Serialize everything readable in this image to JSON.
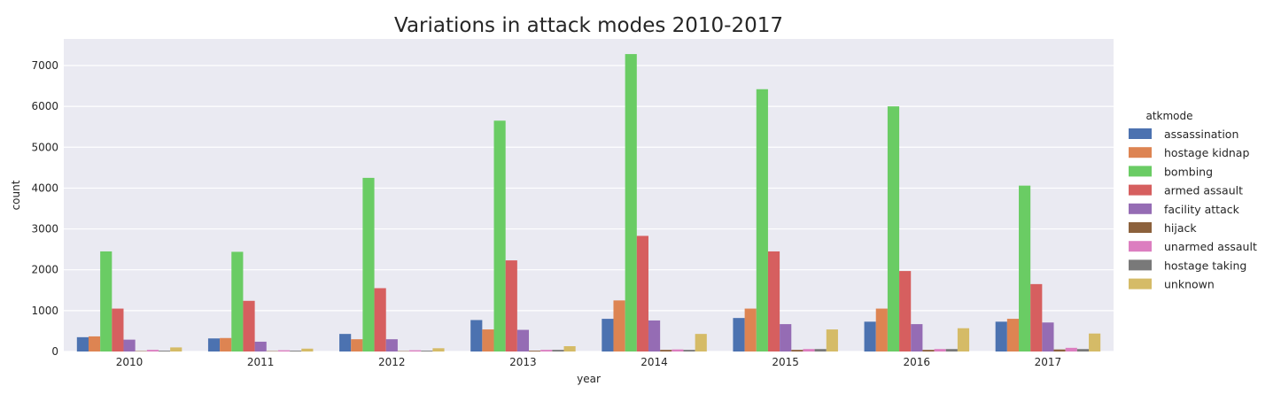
{
  "chart_data": {
    "type": "bar",
    "title": "Variations in attack modes 2010-2017",
    "xlabel": "year",
    "ylabel": "count",
    "ylim": [
      0,
      7650
    ],
    "yticks": [
      0,
      1000,
      2000,
      3000,
      4000,
      5000,
      6000,
      7000
    ],
    "grid": true,
    "legend_title": "atkmode",
    "legend_position": "right",
    "categories": [
      "2010",
      "2011",
      "2012",
      "2013",
      "2014",
      "2015",
      "2016",
      "2017"
    ],
    "series": [
      {
        "name": "assassination",
        "color": "#4c72b0",
        "values": [
          350,
          320,
          430,
          770,
          800,
          820,
          730,
          730
        ]
      },
      {
        "name": "hostage kidnap",
        "color": "#dd8452",
        "values": [
          370,
          330,
          300,
          540,
          1250,
          1050,
          1050,
          800
        ]
      },
      {
        "name": "bombing",
        "color": "#6acc64",
        "values": [
          2450,
          2440,
          4250,
          5650,
          7280,
          6420,
          6000,
          4060
        ]
      },
      {
        "name": "armed assault",
        "color": "#d65f5f",
        "values": [
          1050,
          1240,
          1550,
          2230,
          2830,
          2450,
          1970,
          1650
        ]
      },
      {
        "name": "facility attack",
        "color": "#956cb4",
        "values": [
          290,
          240,
          300,
          530,
          760,
          670,
          670,
          710
        ]
      },
      {
        "name": "hijack",
        "color": "#8c613c",
        "values": [
          10,
          10,
          10,
          20,
          40,
          40,
          40,
          50
        ]
      },
      {
        "name": "unarmed assault",
        "color": "#dc7ec0",
        "values": [
          40,
          30,
          30,
          40,
          50,
          60,
          60,
          90
        ]
      },
      {
        "name": "hostage taking",
        "color": "#797979",
        "values": [
          20,
          20,
          20,
          40,
          40,
          60,
          60,
          60
        ]
      },
      {
        "name": "unknown",
        "color": "#d5bb67",
        "values": [
          100,
          70,
          80,
          130,
          430,
          540,
          570,
          440
        ]
      }
    ]
  }
}
